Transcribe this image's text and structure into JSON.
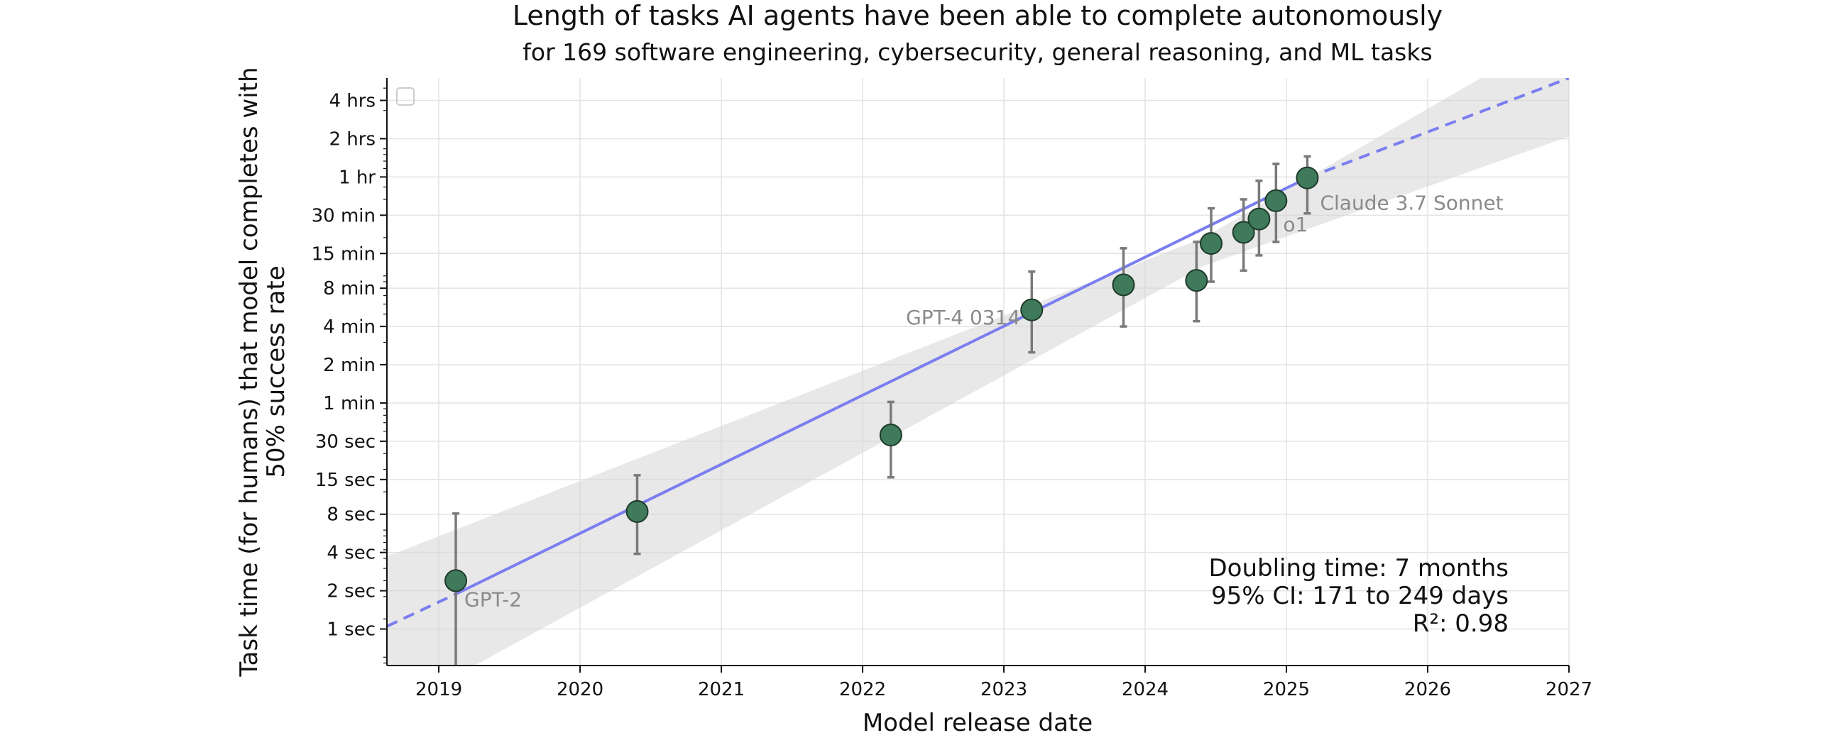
{
  "chart_data": {
    "type": "scatter",
    "title": "Length of tasks AI agents have been able to complete autonomously",
    "subtitle": "for 169 software engineering, cybersecurity, general reasoning, and ML tasks",
    "xlabel": "Model release date",
    "ylabel": "Task time (for humans) that model completes with 50% success rate",
    "y_scale": "log",
    "xlim": [
      "2018-08-20",
      "2027-01-01"
    ],
    "ylim_minutes": [
      0.0086,
      360
    ],
    "x_ticks": [
      "2019",
      "2020",
      "2021",
      "2022",
      "2023",
      "2024",
      "2025",
      "2026",
      "2027"
    ],
    "y_ticks": [
      {
        "label": "1 sec",
        "minutes": 0.016667
      },
      {
        "label": "2 sec",
        "minutes": 0.033333
      },
      {
        "label": "4 sec",
        "minutes": 0.066667
      },
      {
        "label": "8 sec",
        "minutes": 0.133333
      },
      {
        "label": "15 sec",
        "minutes": 0.25
      },
      {
        "label": "30 sec",
        "minutes": 0.5
      },
      {
        "label": "1 min",
        "minutes": 1
      },
      {
        "label": "2 min",
        "minutes": 2
      },
      {
        "label": "4 min",
        "minutes": 4
      },
      {
        "label": "8 min",
        "minutes": 8
      },
      {
        "label": "15 min",
        "minutes": 15
      },
      {
        "label": "30 min",
        "minutes": 30
      },
      {
        "label": "1 hr",
        "minutes": 60
      },
      {
        "label": "2 hrs",
        "minutes": 120
      },
      {
        "label": "4 hrs",
        "minutes": 240
      }
    ],
    "grid": true,
    "points": [
      {
        "date": "2019-02-14",
        "minutes": 0.04,
        "err_low": 0.0086,
        "err_high": 0.135,
        "label": "GPT-2"
      },
      {
        "date": "2020-05-28",
        "minutes": 0.14,
        "err_low": 0.065,
        "err_high": 0.27,
        "label": ""
      },
      {
        "date": "2022-03-15",
        "minutes": 0.56,
        "err_low": 0.26,
        "err_high": 1.02,
        "label": ""
      },
      {
        "date": "2023-03-14",
        "minutes": 5.4,
        "err_low": 2.5,
        "err_high": 10.8,
        "label": "GPT-4 0314"
      },
      {
        "date": "2023-11-06",
        "minutes": 8.5,
        "err_low": 4.0,
        "err_high": 16.5,
        "label": ""
      },
      {
        "date": "2024-05-13",
        "minutes": 9.2,
        "err_low": 4.4,
        "err_high": 18.5,
        "label": ""
      },
      {
        "date": "2024-06-20",
        "minutes": 18.0,
        "err_low": 9.0,
        "err_high": 34.0,
        "label": ""
      },
      {
        "date": "2024-09-12",
        "minutes": 22.0,
        "err_low": 11.0,
        "err_high": 40.0,
        "label": ""
      },
      {
        "date": "2024-10-22",
        "minutes": 28.0,
        "err_low": 14.5,
        "err_high": 56.0,
        "label": ""
      },
      {
        "date": "2024-12-05",
        "minutes": 39.0,
        "err_low": 18.5,
        "err_high": 76.0,
        "label": "o1"
      },
      {
        "date": "2025-02-24",
        "minutes": 59.0,
        "err_low": 31.0,
        "err_high": 87.0,
        "label": "Claude 3.7 Sonnet"
      }
    ],
    "trend_line": {
      "solid": [
        {
          "date": "2019-02-14",
          "minutes": 0.0314
        },
        {
          "date": "2025-02-24",
          "minutes": 59.0
        }
      ],
      "dashed_before": [
        {
          "date": "2018-08-20",
          "minutes": 0.0175
        },
        {
          "date": "2019-02-14",
          "minutes": 0.0314
        }
      ],
      "dashed_after": [
        {
          "date": "2025-02-24",
          "minutes": 59.0
        },
        {
          "date": "2027-01-01",
          "minutes": 360
        }
      ],
      "color": "#7b7ef0"
    },
    "ci_band": {
      "left": {
        "date": "2018-08-20",
        "low": 0.0036,
        "high": 0.062
      },
      "mid": {
        "date": "2024-06-01",
        "low": 12.0,
        "high": 20.0
      },
      "right": {
        "date": "2027-01-01",
        "low": 125,
        "high": 900
      }
    },
    "point_color": "#3f7a5a",
    "annotations": [
      "Doubling time: 7 months",
      "95% CI: 171 to 249 days",
      "R²: 0.98"
    ]
  }
}
